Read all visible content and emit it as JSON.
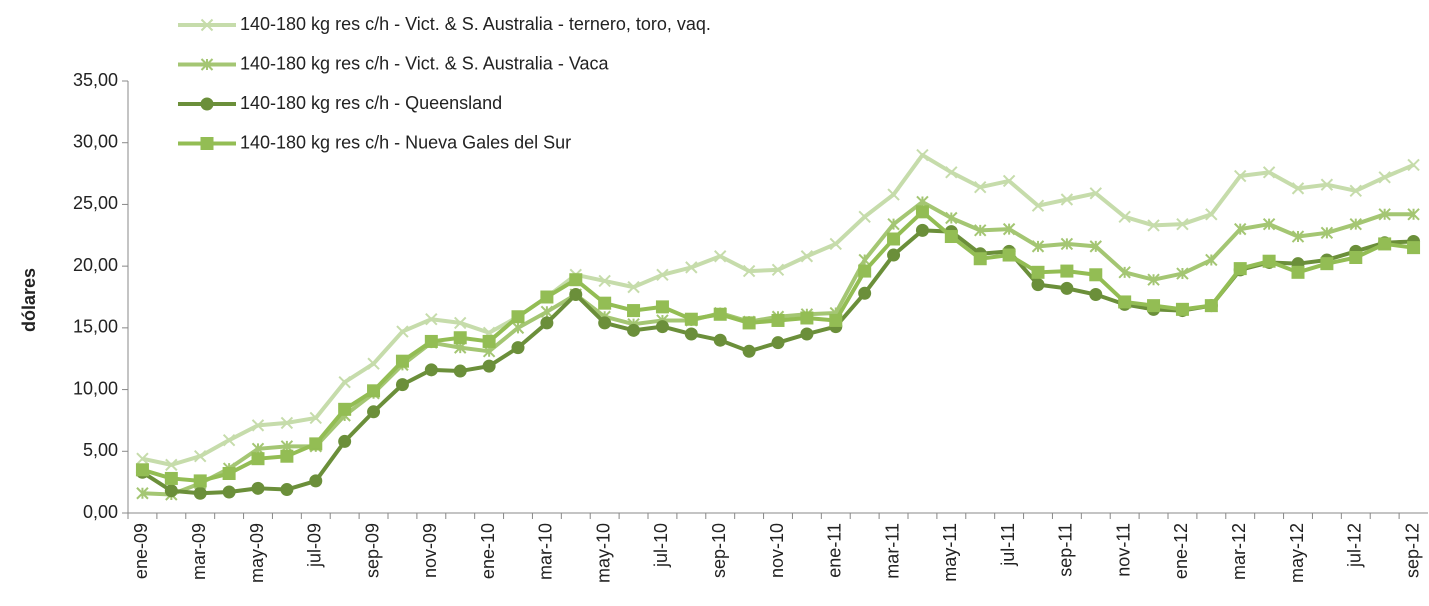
{
  "chart_data": {
    "type": "line",
    "y_label": "dólares",
    "categories": [
      "ene-09",
      null,
      "mar-09",
      null,
      "may-09",
      null,
      "jul-09",
      null,
      "sep-09",
      null,
      "nov-09",
      null,
      "ene-10",
      null,
      "mar-10",
      null,
      "may-10",
      null,
      "jul-10",
      null,
      "sep-10",
      null,
      "nov-10",
      null,
      "ene-11",
      null,
      "mar-11",
      null,
      "may-11",
      null,
      "jul-11",
      null,
      "sep-11",
      null,
      "nov-11",
      null,
      "ene-12",
      null,
      "mar-12",
      null,
      "may-12",
      null,
      "jul-12",
      null,
      "sep-12"
    ],
    "series": [
      {
        "name": "140-180 kg res c/h - Vict. & S. Australia - ternero, toro, vaq.",
        "color": "#c6dcab",
        "marker": "x",
        "values": [
          4.4,
          3.9,
          4.6,
          5.9,
          7.1,
          7.3,
          7.7,
          10.6,
          12.1,
          14.7,
          15.7,
          15.4,
          14.6,
          15.9,
          17.5,
          19.3,
          18.8,
          18.3,
          19.3,
          19.9,
          20.8,
          19.6,
          19.7,
          20.8,
          21.8,
          24.0,
          25.8,
          29.0,
          27.6,
          26.4,
          26.9,
          24.9,
          25.4,
          25.9,
          24.0,
          23.3,
          23.4,
          24.2,
          27.3,
          27.6,
          26.3,
          26.6,
          26.1,
          27.2,
          28.2
        ]
      },
      {
        "name": "140-180 kg res c/h - Vict. & S. Australia - Vaca",
        "color": "#a4c673",
        "marker": "asterisk",
        "values": [
          1.6,
          1.5,
          2.4,
          3.6,
          5.2,
          5.4,
          5.4,
          7.9,
          9.7,
          12.0,
          13.8,
          13.4,
          13.1,
          15.0,
          16.3,
          17.7,
          15.9,
          15.3,
          15.6,
          15.6,
          16.2,
          15.5,
          15.9,
          16.1,
          16.2,
          20.5,
          23.4,
          25.2,
          23.9,
          22.9,
          23.0,
          21.6,
          21.8,
          21.6,
          19.5,
          18.9,
          19.4,
          20.5,
          23.0,
          23.4,
          22.4,
          22.7,
          23.4,
          24.2,
          24.2
        ]
      },
      {
        "name": "140-180 kg res c/h - Queensland",
        "color": "#6b8f3a",
        "marker": "circle",
        "values": [
          3.3,
          1.8,
          1.6,
          1.7,
          2.0,
          1.9,
          2.6,
          5.8,
          8.2,
          10.4,
          11.6,
          11.5,
          11.9,
          13.4,
          15.4,
          17.7,
          15.4,
          14.8,
          15.1,
          14.5,
          14.0,
          13.1,
          13.8,
          14.5,
          15.1,
          17.8,
          20.9,
          22.9,
          22.8,
          21.0,
          21.2,
          18.5,
          18.2,
          17.7,
          16.9,
          16.5,
          16.4,
          16.8,
          19.7,
          20.3,
          20.2,
          20.5,
          21.2,
          21.9,
          22.0
        ]
      },
      {
        "name": "140-180 kg res c/h - Nueva Gales del Sur",
        "color": "#93bd54",
        "marker": "square",
        "values": [
          3.5,
          2.8,
          2.6,
          3.2,
          4.4,
          4.6,
          5.6,
          8.4,
          9.9,
          12.3,
          13.9,
          14.2,
          13.9,
          15.9,
          17.5,
          18.9,
          17.0,
          16.4,
          16.7,
          15.7,
          16.1,
          15.4,
          15.6,
          15.8,
          15.6,
          19.6,
          22.2,
          24.4,
          22.4,
          20.6,
          20.9,
          19.5,
          19.6,
          19.3,
          17.1,
          16.8,
          16.5,
          16.8,
          19.8,
          20.4,
          19.5,
          20.2,
          20.7,
          21.8,
          21.5
        ]
      }
    ],
    "ylim": [
      0,
      35
    ],
    "yticks": [
      {
        "value": 0,
        "label": "0,00"
      },
      {
        "value": 5,
        "label": "5,00"
      },
      {
        "value": 10,
        "label": "10,00"
      },
      {
        "value": 15,
        "label": "15,00"
      },
      {
        "value": 20,
        "label": "20,00"
      },
      {
        "value": 25,
        "label": "25,00"
      },
      {
        "value": 30,
        "label": "30,00"
      },
      {
        "value": 35,
        "label": "35,00"
      }
    ],
    "grid": false,
    "legend": "top-left"
  }
}
